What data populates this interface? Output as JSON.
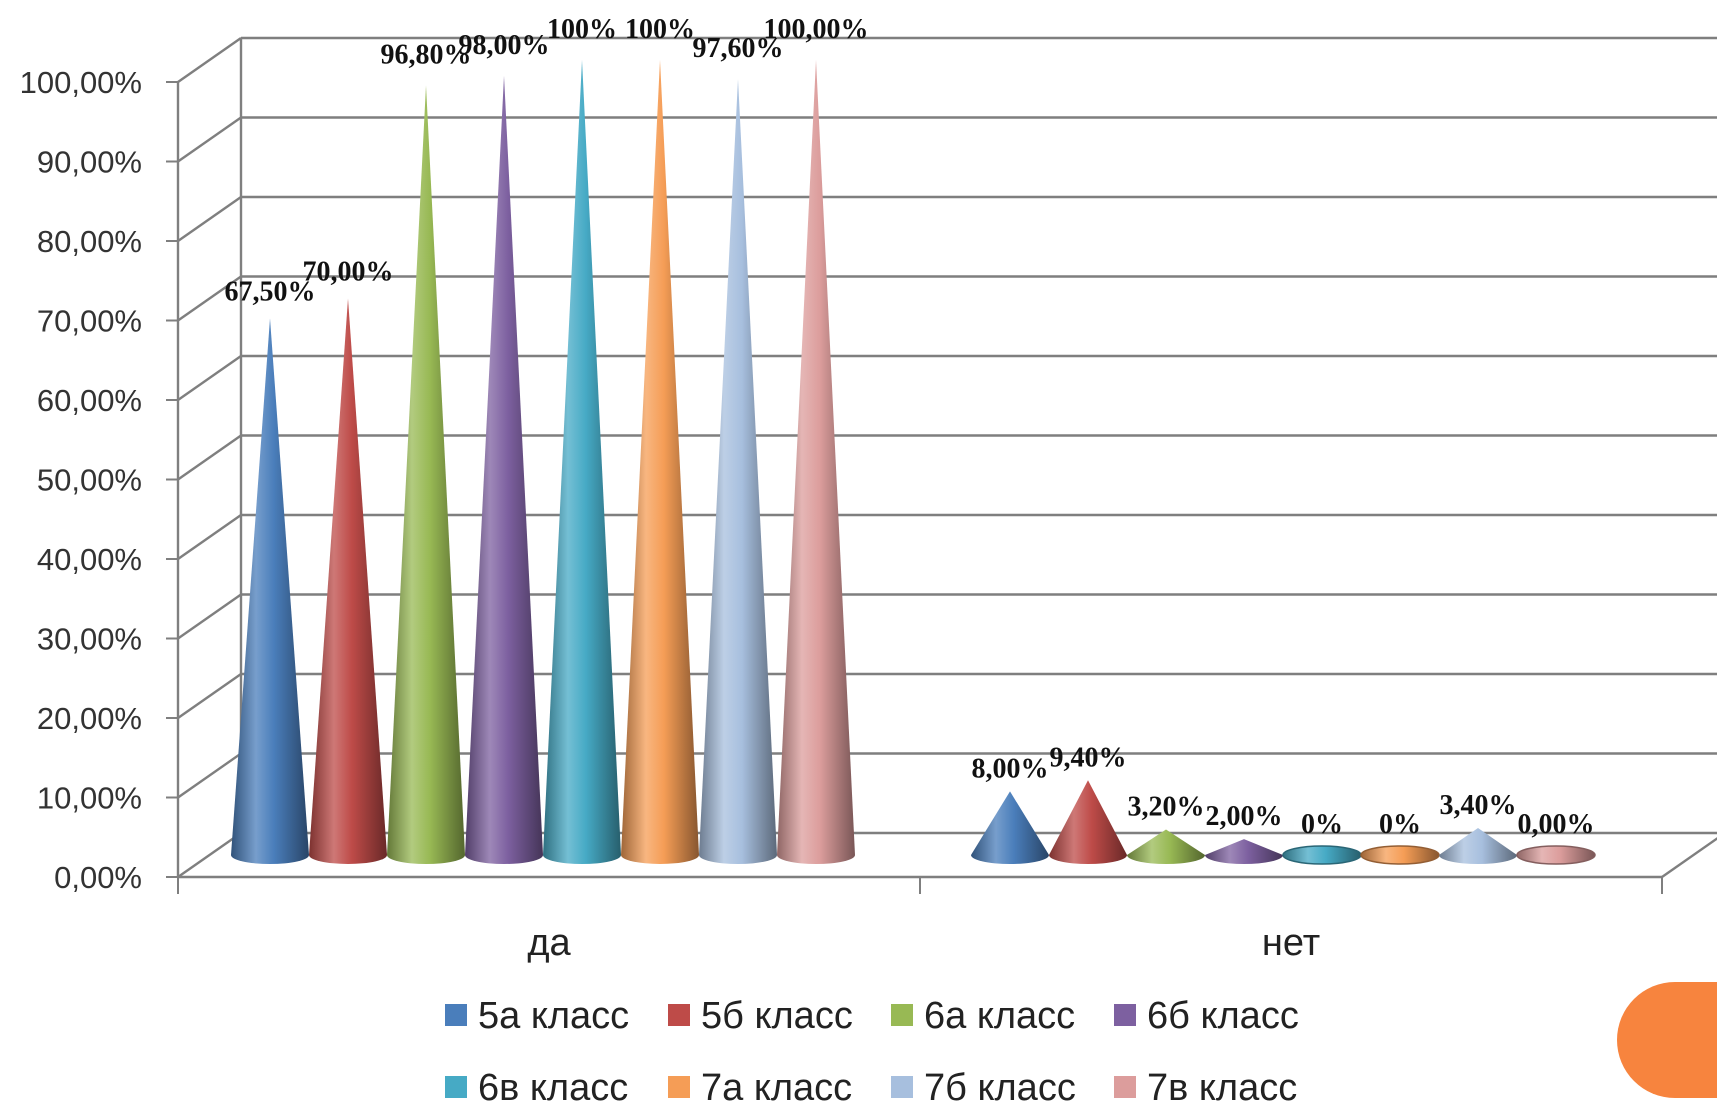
{
  "chart_data": {
    "type": "bar",
    "style": "3d-cone",
    "categories": [
      "да",
      "нет"
    ],
    "ylim": [
      0,
      100
    ],
    "y_ticks": [
      "0,00%",
      "10,00%",
      "20,00%",
      "30,00%",
      "40,00%",
      "50,00%",
      "60,00%",
      "70,00%",
      "80,00%",
      "90,00%",
      "100,00%"
    ],
    "grid": true,
    "legend_position": "bottom",
    "series": [
      {
        "name": "5а класс",
        "color": "#4a7ebb",
        "values": [
          67.5,
          8.0
        ],
        "labels": [
          "67,50%",
          "8,00%"
        ]
      },
      {
        "name": "5б класс",
        "color": "#be4b48",
        "values": [
          70.0,
          9.4
        ],
        "labels": [
          "70,00%",
          "9,40%"
        ]
      },
      {
        "name": "6а класс",
        "color": "#98b954",
        "values": [
          96.8,
          3.2
        ],
        "labels": [
          "96,80%",
          "3,20%"
        ]
      },
      {
        "name": "6б класс",
        "color": "#7d60a0",
        "values": [
          98.0,
          2.0
        ],
        "labels": [
          "98,00%",
          "2,00%"
        ]
      },
      {
        "name": "6в класс",
        "color": "#46aac5",
        "values": [
          100,
          0
        ],
        "labels": [
          "100%",
          "0%"
        ]
      },
      {
        "name": "7а класс",
        "color": "#f59d56",
        "values": [
          100,
          0
        ],
        "labels": [
          "100%",
          "0%"
        ]
      },
      {
        "name": "7б класс",
        "color": "#a7bfde",
        "values": [
          97.6,
          3.4
        ],
        "labels": [
          "97,60%",
          "3,40%"
        ]
      },
      {
        "name": "7в класс",
        "color": "#dc9d9c",
        "values": [
          100,
          0
        ],
        "labels": [
          "100,00%",
          "0,00%"
        ]
      }
    ]
  }
}
